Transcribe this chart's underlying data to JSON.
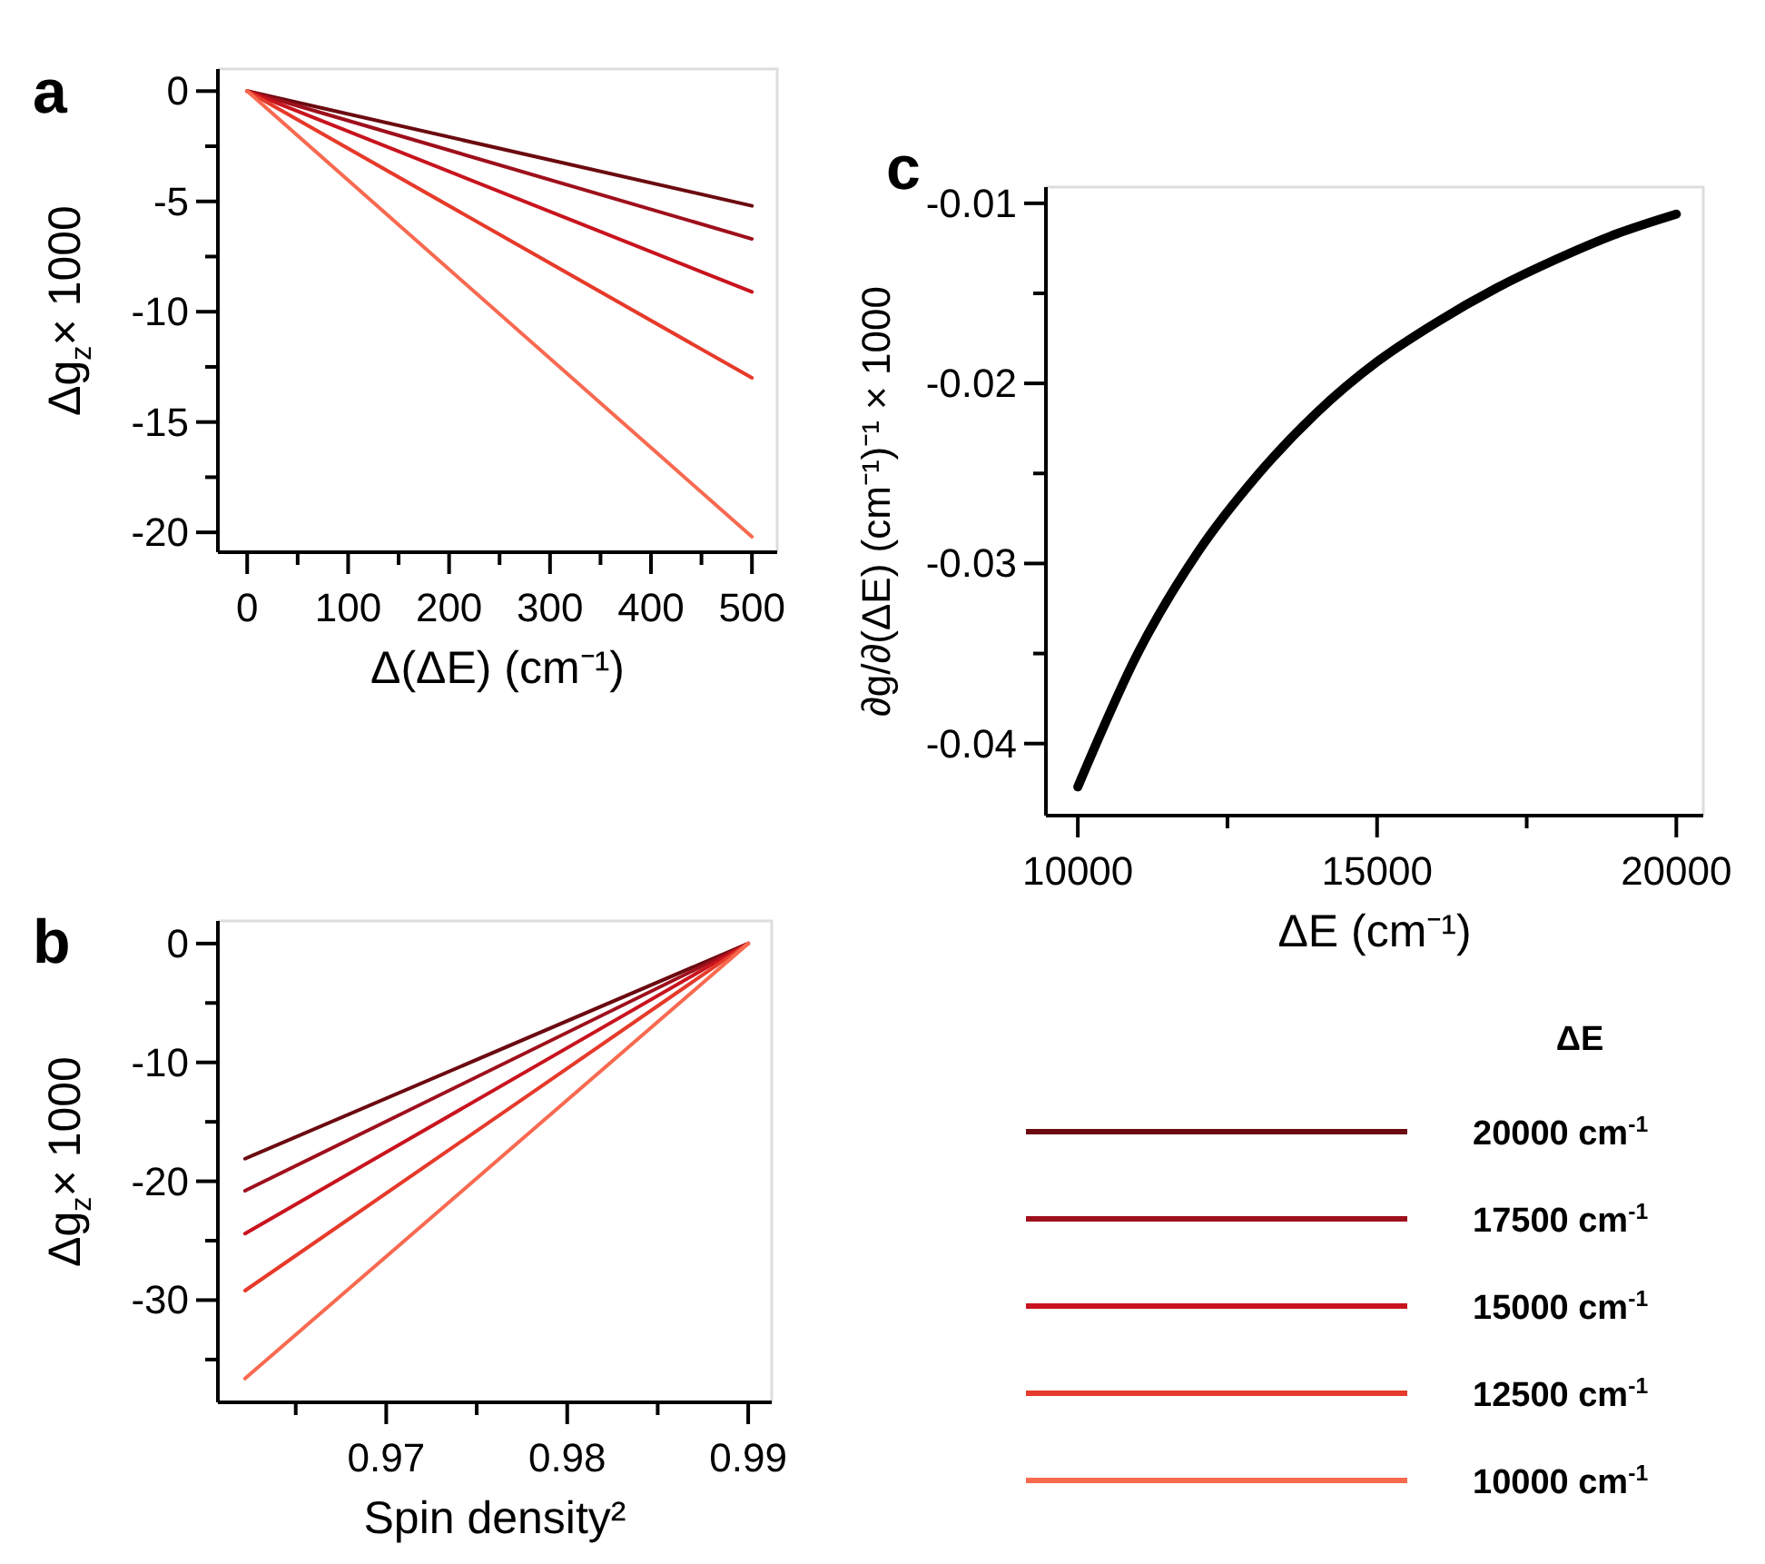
{
  "chart_data": [
    {
      "type": "line",
      "title": "a",
      "xlabel": "Δ(ΔE) (cm⁻¹)",
      "ylabel": "Δg$_{z}$× 1000",
      "x": [
        0,
        500
      ],
      "series": [
        {
          "color": "#6b0a10",
          "values": [
            0,
            -5.2
          ]
        },
        {
          "color": "#9e101c",
          "values": [
            0,
            -6.7
          ]
        },
        {
          "color": "#c8141e",
          "values": [
            0,
            -9.1
          ]
        },
        {
          "color": "#e63a2a",
          "values": [
            0,
            -13.0
          ]
        },
        {
          "color": "#f86a50",
          "values": [
            0,
            -20.2
          ]
        }
      ],
      "xlim": [
        -29,
        525
      ],
      "ylim": [
        -20.9,
        1
      ],
      "xticks": [
        0,
        {
          "value": 50,
          "label": null
        },
        100,
        {
          "value": 150,
          "label": null
        },
        200,
        {
          "value": 250,
          "label": null
        },
        300,
        {
          "value": 350,
          "label": null
        },
        400,
        {
          "value": 450,
          "label": null
        },
        500
      ],
      "yticks": [
        0,
        {
          "value": -2.5,
          "label": null
        },
        -5,
        {
          "value": -7.5,
          "label": null
        },
        -10,
        {
          "value": -12.5,
          "label": null
        },
        -15,
        {
          "value": -17.5,
          "label": null
        },
        -20
      ]
    },
    {
      "type": "line",
      "title": "b",
      "xlabel": "Spin density²",
      "ylabel": "Δg$_{z}$× 1000",
      "legend_title": "ΔE",
      "legend": "right",
      "x": [
        0.9622,
        0.99
      ],
      "series": [
        {
          "name": "20000 cm$^{-1}$",
          "color": "#6b0a10",
          "values": [
            -18.1,
            0
          ]
        },
        {
          "name": "17500 cm$^{-1}$",
          "color": "#9e101c",
          "values": [
            -20.8,
            0
          ]
        },
        {
          "name": "15000 cm$^{-1}$",
          "color": "#c8141e",
          "values": [
            -24.4,
            0
          ]
        },
        {
          "name": "12500 cm$^{-1}$",
          "color": "#e63a2a",
          "values": [
            -29.2,
            0
          ]
        },
        {
          "name": "10000 cm$^{-1}$",
          "color": "#f86a50",
          "values": [
            -36.6,
            0
          ]
        }
      ],
      "xlim": [
        0.9607,
        0.9913
      ],
      "ylim": [
        -38.6,
        1.9
      ],
      "xticks": [
        {
          "value": 0.965,
          "label": null
        },
        0.97,
        {
          "value": 0.975,
          "label": null
        },
        0.98,
        {
          "value": 0.985,
          "label": null
        },
        0.99
      ],
      "yticks": [
        0,
        {
          "value": -5,
          "label": null
        },
        -10,
        {
          "value": -15,
          "label": null
        },
        -20,
        {
          "value": -25,
          "label": null
        },
        -30,
        {
          "value": -35,
          "label": null
        }
      ]
    },
    {
      "type": "line",
      "title": "c",
      "xlabel": "ΔE (cm⁻¹)",
      "ylabel": "∂g/∂(ΔE) (cm⁻¹)⁻¹ × 1000",
      "x": [
        10000,
        11000,
        12000,
        13000,
        14000,
        15000,
        16000,
        17000,
        18000,
        19000,
        20000
      ],
      "series": [
        {
          "color": "#000000",
          "values": [
            -0.0424,
            -0.035,
            -0.0294,
            -0.0251,
            -0.0216,
            -0.0188,
            -0.0166,
            -0.0147,
            -0.0131,
            -0.0117,
            -0.0106
          ]
        }
      ],
      "xlim": [
        9467,
        20450
      ],
      "ylim": [
        -0.044,
        -0.0091
      ],
      "xticks": [
        10000,
        {
          "value": 12500,
          "label": null
        },
        15000,
        {
          "value": 17500,
          "label": null
        },
        20000
      ],
      "yticks": [
        -0.01,
        {
          "value": -0.015,
          "label": null
        },
        -0.02,
        {
          "value": -0.025,
          "label": null
        },
        -0.03,
        {
          "value": -0.035,
          "label": null
        },
        -0.04
      ]
    }
  ]
}
